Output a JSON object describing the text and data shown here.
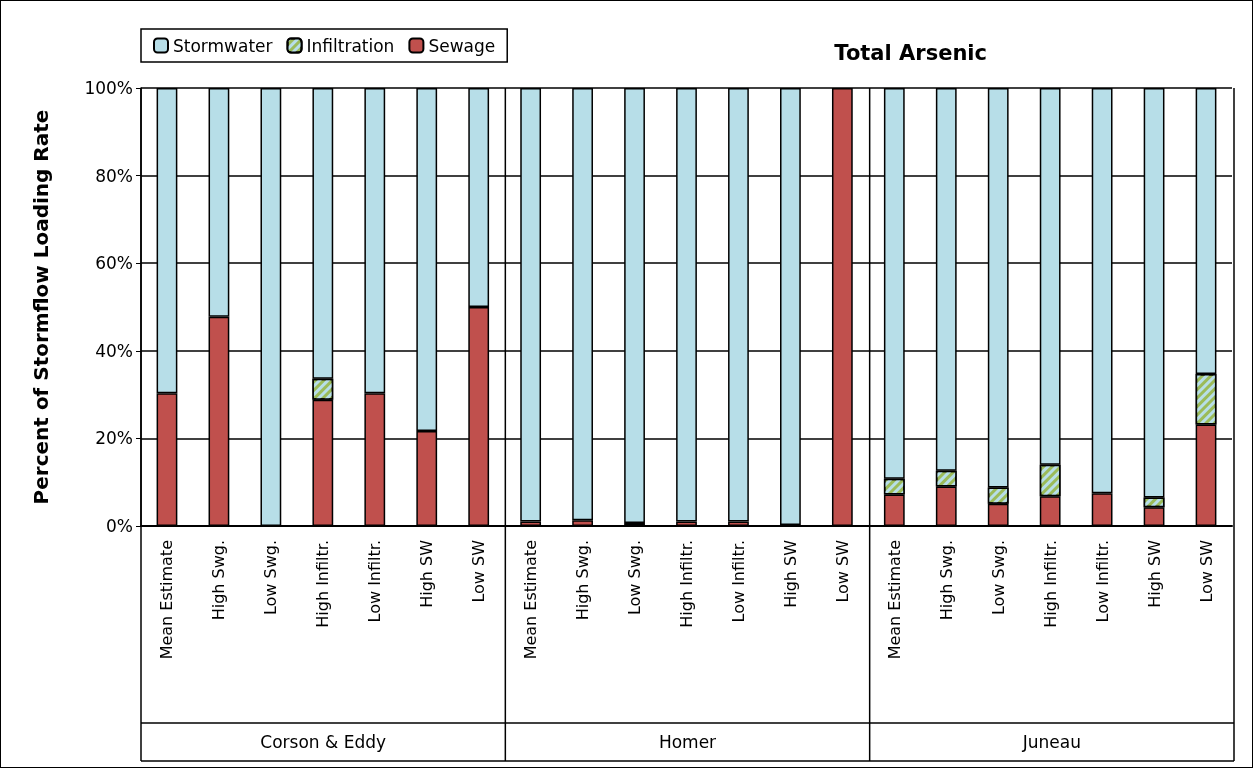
{
  "chart_data": {
    "type": "bar",
    "title": "Total Arsenic",
    "ylabel": "Percent of Stormflow Loading Rate",
    "categories": [
      "Mean Estimate",
      "High Swg.",
      "Low Swg.",
      "High Infiltr.",
      "Low Infiltr.",
      "High SW",
      "Low SW",
      "Mean Estimate",
      "High Swg.",
      "Low Swg.",
      "High Infiltr.",
      "Low Infiltr.",
      "High SW",
      "Low SW",
      "Mean Estimate",
      "High Swg.",
      "Low Swg.",
      "High Infiltr.",
      "Low Infiltr.",
      "High SW",
      "Low SW"
    ],
    "annotations": [
      "Corson & Eddy",
      "Homer",
      "Juneau"
    ],
    "stacked": true,
    "series": [
      {
        "name": "Sewage",
        "color": "#c0504d",
        "values": [
          30.3,
          47.8,
          0,
          28.8,
          30.3,
          21.7,
          50,
          1,
          1.3,
          0.7,
          1,
          1,
          0.2,
          100,
          7.2,
          9.0,
          5.1,
          6.8,
          7.5,
          4.3,
          23.2
        ]
      },
      {
        "name": "Infiltration",
        "color": "#9bbb59",
        "values": [
          0,
          0,
          0,
          4.8,
          0,
          0,
          0,
          0,
          0,
          0,
          0,
          0,
          0,
          0,
          3.6,
          3.6,
          3.7,
          7.2,
          0,
          2.2,
          11.5
        ]
      },
      {
        "name": "Stormwater",
        "color": "#b7dee8",
        "values": [
          69.7,
          52.2,
          100,
          66.4,
          69.7,
          78.3,
          50,
          99,
          98.7,
          99.3,
          99,
          99,
          99.8,
          0,
          89.2,
          87.4,
          91.2,
          86,
          92.5,
          93.5,
          65.3
        ]
      }
    ],
    "ylim": [
      0,
      100
    ],
    "yticks": [
      {
        "value": 0,
        "label": "0%"
      },
      {
        "value": 20,
        "label": "20%"
      },
      {
        "value": 40,
        "label": "40%"
      },
      {
        "value": 60,
        "label": "60%"
      },
      {
        "value": 80,
        "label": "80%"
      },
      {
        "value": 100,
        "label": "100%"
      }
    ],
    "grid": "y",
    "legend": "top left"
  }
}
